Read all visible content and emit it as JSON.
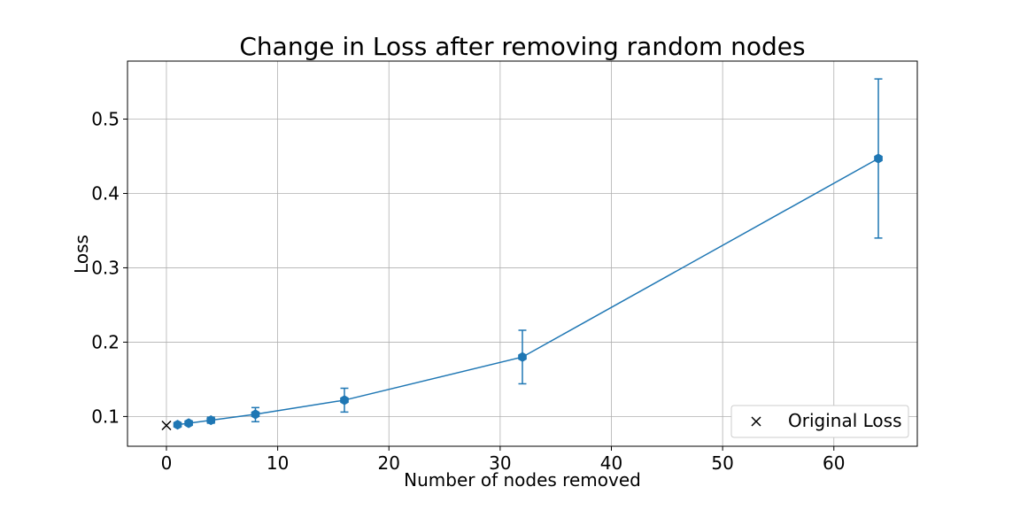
{
  "chart_data": {
    "type": "line",
    "title": "Change in Loss after removing random nodes",
    "xlabel": "Number of nodes removed",
    "ylabel": "Loss",
    "xlim": [
      -3.5,
      67.5
    ],
    "ylim": [
      0.06,
      0.578
    ],
    "xticks": [
      0,
      10,
      20,
      30,
      40,
      50,
      60
    ],
    "yticks": [
      0.1,
      0.2,
      0.3,
      0.4,
      0.5
    ],
    "grid": true,
    "series": [
      {
        "color": "#1f77b4",
        "marker": "hexagon",
        "x": [
          1,
          2,
          4,
          8,
          16,
          32,
          64
        ],
        "y": [
          0.089,
          0.091,
          0.095,
          0.103,
          0.122,
          0.18,
          0.447
        ],
        "err_low": [
          0.087,
          0.089,
          0.091,
          0.093,
          0.106,
          0.144,
          0.34
        ],
        "err_high": [
          0.091,
          0.094,
          0.099,
          0.112,
          0.138,
          0.216,
          0.554
        ]
      },
      {
        "name": "Original Loss",
        "color": "#000000",
        "marker": "x",
        "x": [
          0
        ],
        "y": [
          0.088
        ]
      }
    ],
    "legend": {
      "position": "lower-right",
      "entries": [
        "Original Loss"
      ]
    }
  }
}
